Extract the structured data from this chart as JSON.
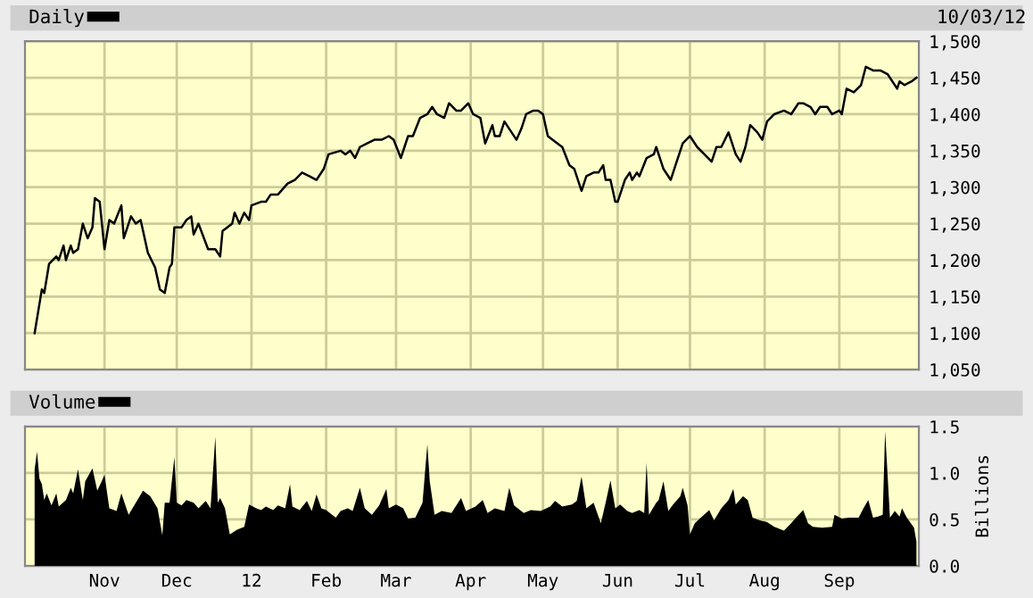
{
  "chart_data": [
    {
      "type": "line",
      "legend": "top left",
      "grid": true,
      "tick_labels": "y",
      "annotations": [
        "10/03/12"
      ],
      "xlim": [
        "2011-09-29",
        "2012-10-04"
      ],
      "xticks": [
        {
          "value": "2011-11-01",
          "label": null
        },
        {
          "value": "2011-12-01",
          "label": null
        },
        {
          "value": "2012-01-01",
          "label": null
        },
        {
          "value": "2012-02-01",
          "label": null
        },
        {
          "value": "2012-03-01",
          "label": null
        },
        {
          "value": "2012-04-01",
          "label": null
        },
        {
          "value": "2012-05-01",
          "label": null
        },
        {
          "value": "2012-06-01",
          "label": null
        },
        {
          "value": "2012-07-01",
          "label": null
        },
        {
          "value": "2012-08-01",
          "label": null
        },
        {
          "value": "2012-09-01",
          "label": null
        }
      ],
      "ylim": [
        1050,
        1500
      ],
      "yticks": [
        {
          "value": 1050,
          "label": "1,050"
        },
        {
          "value": 1100,
          "label": "1,100"
        },
        {
          "value": 1150,
          "label": "1,150"
        },
        {
          "value": 1200,
          "label": "1,200"
        },
        {
          "value": 1250,
          "label": "1,250"
        },
        {
          "value": 1300,
          "label": "1,300"
        },
        {
          "value": 1350,
          "label": "1,350"
        },
        {
          "value": 1400,
          "label": "1,400"
        },
        {
          "value": 1450,
          "label": "1,450"
        },
        {
          "value": 1500,
          "label": "1,500"
        }
      ],
      "series": [
        {
          "name": "Daily",
          "color": "#000000",
          "x": [
            "2011-10-03",
            "2011-10-06",
            "2011-10-07",
            "2011-10-09",
            "2011-10-12",
            "2011-10-13",
            "2011-10-15",
            "2011-10-16",
            "2011-10-18",
            "2011-10-19",
            "2011-10-21",
            "2011-10-23",
            "2011-10-25",
            "2011-10-27",
            "2011-10-28",
            "2011-10-30",
            "2011-11-01",
            "2011-11-03",
            "2011-11-05",
            "2011-11-08",
            "2011-11-09",
            "2011-11-12",
            "2011-11-14",
            "2011-11-16",
            "2011-11-19",
            "2011-11-22",
            "2011-11-24",
            "2011-11-26",
            "2011-11-28",
            "2011-11-29",
            "2011-11-30",
            "2011-12-03",
            "2011-12-05",
            "2011-12-07",
            "2011-12-08",
            "2011-12-10",
            "2011-12-14",
            "2011-12-17",
            "2011-12-19",
            "2011-12-20",
            "2011-12-24",
            "2011-12-25",
            "2011-12-27",
            "2011-12-29",
            "2011-12-31",
            "2012-01-01",
            "2012-01-05",
            "2012-01-07",
            "2012-01-09",
            "2012-01-12",
            "2012-01-16",
            "2012-01-19",
            "2012-01-22",
            "2012-01-25",
            "2012-01-28",
            "2012-01-31",
            "2012-02-02",
            "2012-02-07",
            "2012-02-09",
            "2012-02-11",
            "2012-02-13",
            "2012-02-15",
            "2012-02-18",
            "2012-02-21",
            "2012-02-24",
            "2012-02-27",
            "2012-02-29",
            "2012-03-03",
            "2012-03-06",
            "2012-03-08",
            "2012-03-11",
            "2012-03-14",
            "2012-03-16",
            "2012-03-18",
            "2012-03-21",
            "2012-03-23",
            "2012-03-26",
            "2012-03-28",
            "2012-03-31",
            "2012-04-02",
            "2012-04-05",
            "2012-04-07",
            "2012-04-10",
            "2012-04-11",
            "2012-04-13",
            "2012-04-15",
            "2012-04-17",
            "2012-04-20",
            "2012-04-22",
            "2012-04-24",
            "2012-04-27",
            "2012-04-29",
            "2012-05-01",
            "2012-05-03",
            "2012-05-07",
            "2012-05-09",
            "2012-05-12",
            "2012-05-14",
            "2012-05-17",
            "2012-05-19",
            "2012-05-22",
            "2012-05-24",
            "2012-05-26",
            "2012-05-27",
            "2012-05-29",
            "2012-05-31",
            "2012-06-01",
            "2012-06-04",
            "2012-06-06",
            "2012-06-07",
            "2012-06-09",
            "2012-06-10",
            "2012-06-13",
            "2012-06-16",
            "2012-06-17",
            "2012-06-19",
            "2012-06-20",
            "2012-06-23",
            "2012-06-25",
            "2012-06-28",
            "2012-07-01",
            "2012-07-04",
            "2012-07-07",
            "2012-07-10",
            "2012-07-12",
            "2012-07-14",
            "2012-07-17",
            "2012-07-20",
            "2012-07-22",
            "2012-07-24",
            "2012-07-26",
            "2012-07-29",
            "2012-07-31",
            "2012-08-02",
            "2012-08-05",
            "2012-08-09",
            "2012-08-12",
            "2012-08-15",
            "2012-08-17",
            "2012-08-20",
            "2012-08-22",
            "2012-08-24",
            "2012-08-27",
            "2012-08-29",
            "2012-09-01",
            "2012-09-02",
            "2012-09-04",
            "2012-09-07",
            "2012-09-10",
            "2012-09-12",
            "2012-09-15",
            "2012-09-18",
            "2012-09-21",
            "2012-09-25",
            "2012-09-26",
            "2012-09-28",
            "2012-10-01",
            "2012-10-03"
          ],
          "values": [
            1100,
            1160,
            1155,
            1195,
            1205,
            1200,
            1220,
            1200,
            1220,
            1210,
            1215,
            1250,
            1230,
            1245,
            1285,
            1280,
            1215,
            1255,
            1250,
            1275,
            1230,
            1260,
            1250,
            1255,
            1210,
            1190,
            1160,
            1155,
            1190,
            1195,
            1245,
            1245,
            1255,
            1260,
            1235,
            1250,
            1215,
            1215,
            1205,
            1240,
            1250,
            1265,
            1250,
            1265,
            1255,
            1275,
            1280,
            1280,
            1290,
            1290,
            1305,
            1310,
            1320,
            1315,
            1310,
            1325,
            1345,
            1350,
            1345,
            1350,
            1340,
            1355,
            1360,
            1365,
            1365,
            1370,
            1365,
            1340,
            1370,
            1370,
            1395,
            1400,
            1410,
            1400,
            1395,
            1415,
            1405,
            1405,
            1415,
            1400,
            1395,
            1360,
            1385,
            1370,
            1370,
            1390,
            1380,
            1365,
            1380,
            1400,
            1405,
            1405,
            1400,
            1370,
            1360,
            1355,
            1330,
            1325,
            1295,
            1315,
            1320,
            1320,
            1330,
            1310,
            1310,
            1280,
            1280,
            1310,
            1320,
            1310,
            1320,
            1315,
            1340,
            1345,
            1355,
            1335,
            1325,
            1310,
            1330,
            1360,
            1370,
            1355,
            1345,
            1335,
            1355,
            1355,
            1375,
            1345,
            1335,
            1355,
            1385,
            1375,
            1365,
            1390,
            1400,
            1405,
            1400,
            1415,
            1415,
            1410,
            1400,
            1410,
            1410,
            1400,
            1405,
            1400,
            1435,
            1430,
            1440,
            1465,
            1460,
            1460,
            1455,
            1435,
            1445,
            1440,
            1445,
            1450
          ]
        }
      ]
    },
    {
      "type": "area",
      "legend": "top left",
      "grid": true,
      "y2label": "Billions",
      "xlim": [
        "2011-09-29",
        "2012-10-04"
      ],
      "xticks": [
        {
          "value": "2011-11-01",
          "label": "Nov"
        },
        {
          "value": "2011-12-01",
          "label": "Dec"
        },
        {
          "value": "2012-01-01",
          "label": "12"
        },
        {
          "value": "2012-02-01",
          "label": "Feb"
        },
        {
          "value": "2012-03-01",
          "label": "Mar"
        },
        {
          "value": "2012-04-01",
          "label": "Apr"
        },
        {
          "value": "2012-05-01",
          "label": "May"
        },
        {
          "value": "2012-06-01",
          "label": "Jun"
        },
        {
          "value": "2012-07-01",
          "label": "Jul"
        },
        {
          "value": "2012-08-01",
          "label": "Aug"
        },
        {
          "value": "2012-09-01",
          "label": "Sep"
        }
      ],
      "y2lim": [
        0,
        1.5
      ],
      "y2ticks": [
        {
          "value": 0,
          "label": "0.0"
        },
        {
          "value": 0.5,
          "label": "0.5"
        },
        {
          "value": 1.0,
          "label": "1.0"
        },
        {
          "value": 1.5,
          "label": "1.5"
        }
      ],
      "series": [
        {
          "name": "Volume",
          "color": "#000000",
          "axis": "y2",
          "x": [
            "2011-10-03",
            "2011-10-04",
            "2011-10-05",
            "2011-10-06",
            "2011-10-07",
            "2011-10-08",
            "2011-10-10",
            "2011-10-12",
            "2011-10-13",
            "2011-10-16",
            "2011-10-18",
            "2011-10-19",
            "2011-10-21",
            "2011-10-23",
            "2011-10-24",
            "2011-10-27",
            "2011-10-29",
            "2011-10-31",
            "2011-11-01",
            "2011-11-03",
            "2011-11-06",
            "2011-11-08",
            "2011-11-11",
            "2011-11-14",
            "2011-11-17",
            "2011-11-20",
            "2011-11-23",
            "2011-11-25",
            "2011-11-26",
            "2011-11-28",
            "2011-11-30",
            "2011-12-01",
            "2011-12-03",
            "2011-12-05",
            "2011-12-08",
            "2011-12-10",
            "2011-12-13",
            "2011-12-15",
            "2011-12-17",
            "2011-12-18",
            "2011-12-19",
            "2011-12-21",
            "2011-12-23",
            "2011-12-26",
            "2011-12-29",
            "2011-12-31",
            "2012-01-03",
            "2012-01-05",
            "2012-01-07",
            "2012-01-10",
            "2012-01-12",
            "2012-01-15",
            "2012-01-17",
            "2012-01-18",
            "2012-01-21",
            "2012-01-24",
            "2012-01-26",
            "2012-01-28",
            "2012-01-30",
            "2012-02-01",
            "2012-02-05",
            "2012-02-07",
            "2012-02-10",
            "2012-02-12",
            "2012-02-15",
            "2012-02-17",
            "2012-02-20",
            "2012-02-23",
            "2012-02-26",
            "2012-02-27",
            "2012-03-01",
            "2012-03-04",
            "2012-03-06",
            "2012-03-09",
            "2012-03-12",
            "2012-03-13",
            "2012-03-14",
            "2012-03-15",
            "2012-03-17",
            "2012-03-20",
            "2012-03-24",
            "2012-03-28",
            "2012-03-30",
            "2012-04-03",
            "2012-04-06",
            "2012-04-08",
            "2012-04-11",
            "2012-04-15",
            "2012-04-17",
            "2012-04-19",
            "2012-04-23",
            "2012-04-26",
            "2012-04-30",
            "2012-05-04",
            "2012-05-06",
            "2012-05-09",
            "2012-05-13",
            "2012-05-15",
            "2012-05-17",
            "2012-05-19",
            "2012-05-22",
            "2012-05-25",
            "2012-05-27",
            "2012-05-29",
            "2012-05-31",
            "2012-06-02",
            "2012-06-05",
            "2012-06-07",
            "2012-06-10",
            "2012-06-12",
            "2012-06-13",
            "2012-06-14",
            "2012-06-17",
            "2012-06-18",
            "2012-06-20",
            "2012-06-22",
            "2012-06-24",
            "2012-06-27",
            "2012-06-28",
            "2012-06-30",
            "2012-07-01",
            "2012-07-03",
            "2012-07-06",
            "2012-07-09",
            "2012-07-11",
            "2012-07-14",
            "2012-07-17",
            "2012-07-19",
            "2012-07-20",
            "2012-07-23",
            "2012-07-25",
            "2012-07-27",
            "2012-07-30",
            "2012-08-02",
            "2012-08-05",
            "2012-08-09",
            "2012-08-12",
            "2012-08-14",
            "2012-08-17",
            "2012-08-19",
            "2012-08-21",
            "2012-08-25",
            "2012-08-29",
            "2012-08-30",
            "2012-09-02",
            "2012-09-05",
            "2012-09-09",
            "2012-09-11",
            "2012-09-13",
            "2012-09-15",
            "2012-09-17",
            "2012-09-19",
            "2012-09-20",
            "2012-09-21",
            "2012-09-22",
            "2012-09-24",
            "2012-09-26",
            "2012-09-27",
            "2012-09-29",
            "2012-10-02",
            "2012-10-03"
          ],
          "values": [
            1.04,
            1.23,
            0.94,
            0.88,
            0.71,
            0.78,
            0.65,
            0.78,
            0.64,
            0.71,
            0.84,
            0.78,
            1.04,
            0.71,
            0.91,
            1.05,
            0.81,
            0.92,
            0.98,
            0.62,
            0.59,
            0.78,
            0.55,
            0.68,
            0.81,
            0.75,
            0.62,
            0.33,
            0.68,
            0.68,
            1.17,
            0.68,
            0.65,
            0.71,
            0.68,
            0.62,
            0.7,
            0.62,
            1.39,
            0.68,
            0.73,
            0.62,
            0.34,
            0.39,
            0.42,
            0.66,
            0.62,
            0.6,
            0.64,
            0.6,
            0.65,
            0.62,
            0.88,
            0.64,
            0.6,
            0.7,
            0.59,
            0.77,
            0.62,
            0.6,
            0.52,
            0.59,
            0.62,
            0.59,
            0.84,
            0.62,
            0.55,
            0.65,
            0.83,
            0.62,
            0.66,
            0.62,
            0.51,
            0.52,
            0.68,
            1.0,
            1.31,
            0.91,
            0.55,
            0.59,
            0.57,
            0.73,
            0.59,
            0.64,
            0.71,
            0.57,
            0.62,
            0.59,
            0.84,
            0.65,
            0.57,
            0.6,
            0.59,
            0.64,
            0.7,
            0.64,
            0.66,
            0.7,
            0.96,
            0.62,
            0.68,
            0.46,
            0.68,
            0.92,
            0.62,
            0.66,
            0.59,
            0.57,
            0.6,
            0.57,
            1.11,
            0.55,
            0.68,
            0.71,
            0.91,
            0.59,
            0.66,
            0.75,
            0.84,
            0.65,
            0.34,
            0.46,
            0.53,
            0.6,
            0.49,
            0.62,
            0.71,
            0.83,
            0.66,
            0.75,
            0.71,
            0.52,
            0.49,
            0.47,
            0.42,
            0.38,
            0.46,
            0.52,
            0.6,
            0.46,
            0.42,
            0.41,
            0.42,
            0.55,
            0.51,
            0.52,
            0.52,
            0.62,
            0.71,
            0.52,
            0.53,
            0.55,
            1.45,
            0.99,
            0.52,
            0.59,
            0.53,
            0.62,
            0.52,
            0.41,
            0.26
          ]
        }
      ]
    }
  ]
}
